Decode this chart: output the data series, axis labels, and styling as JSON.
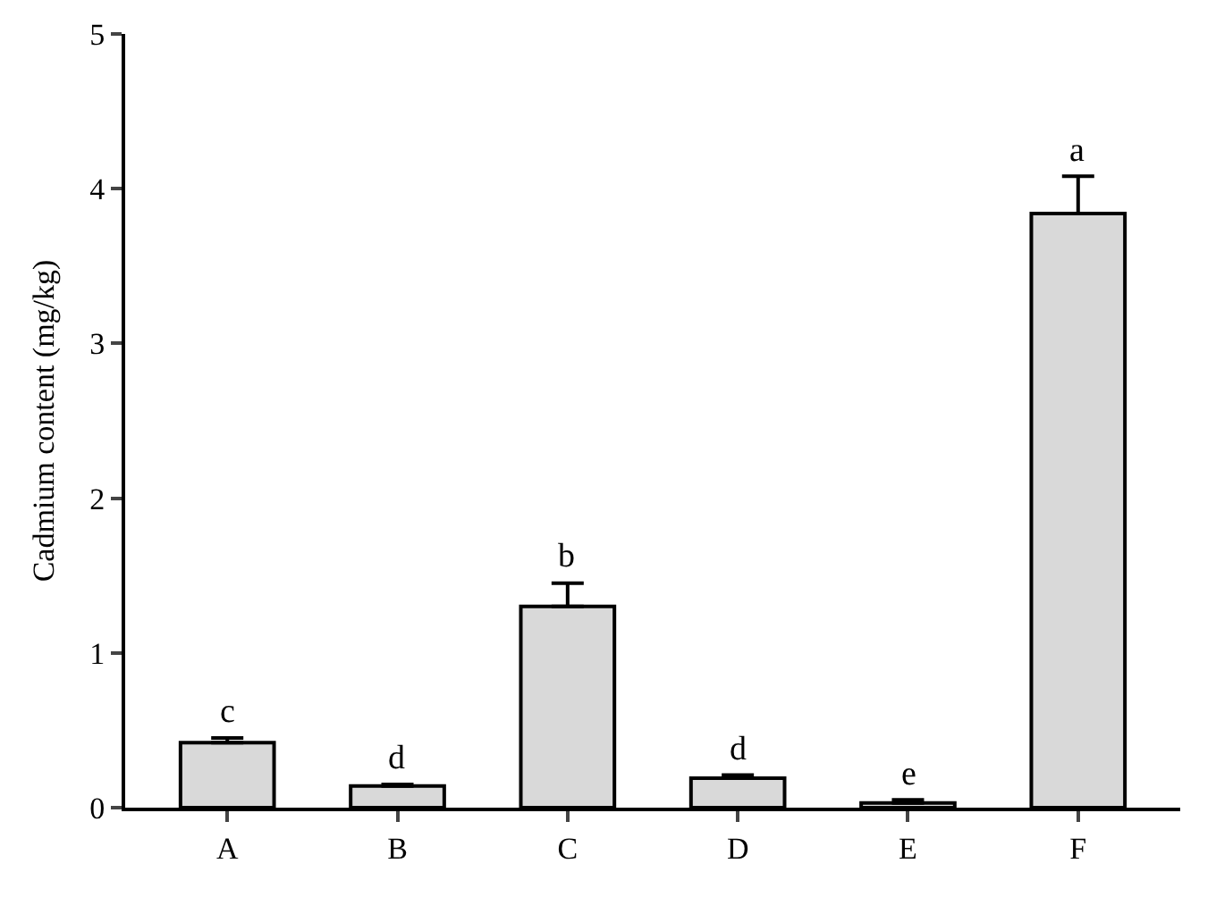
{
  "chart_data": {
    "type": "bar",
    "ylabel": "Cadmium content (mg/kg)",
    "categories": [
      "A",
      "B",
      "C",
      "D",
      "E",
      "F"
    ],
    "values": [
      0.42,
      0.14,
      1.3,
      0.19,
      0.03,
      3.84
    ],
    "errors": [
      [
        0.42,
        0.45
      ],
      [
        0.14,
        0.15
      ],
      [
        1.3,
        1.45
      ],
      [
        0.19,
        0.21
      ],
      [
        0.03,
        0.05
      ],
      [
        3.84,
        4.08
      ]
    ],
    "color": "#d9d9d9",
    "ylim": [
      0,
      5
    ],
    "yticks": [
      0,
      1,
      2,
      3,
      4,
      5
    ],
    "annotations": [
      {
        "text": "c",
        "x": "A",
        "y": 0.45
      },
      {
        "text": "d",
        "x": "B",
        "y": 0.15
      },
      {
        "text": "b",
        "x": "C",
        "y": 1.45
      },
      {
        "text": "d",
        "x": "D",
        "y": 0.21
      },
      {
        "text": "e",
        "x": "E",
        "y": 0.05
      },
      {
        "text": "a",
        "x": "F",
        "y": 4.08
      }
    ]
  }
}
